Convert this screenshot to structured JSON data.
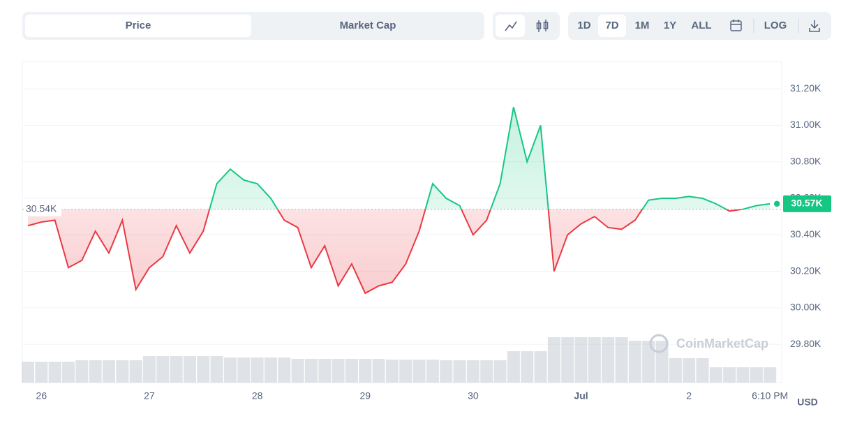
{
  "ui": {
    "tabs": [
      "Price",
      "Market Cap"
    ],
    "ranges": [
      "1D",
      "7D",
      "1M",
      "1Y",
      "ALL"
    ],
    "log": "LOG",
    "currency": "USD",
    "watermark": "CoinMarketCap"
  },
  "chart_data": {
    "type": "line",
    "categories": [
      null,
      "26",
      null,
      null,
      null,
      null,
      null,
      null,
      null,
      "27",
      null,
      null,
      null,
      null,
      null,
      null,
      null,
      "28",
      null,
      null,
      null,
      null,
      null,
      null,
      null,
      "29",
      null,
      null,
      null,
      null,
      null,
      null,
      null,
      "30",
      null,
      null,
      null,
      null,
      null,
      null,
      null,
      "Jul",
      null,
      null,
      null,
      null,
      null,
      null,
      null,
      "2",
      null,
      null,
      null,
      null,
      null,
      "6:10 PM"
    ],
    "values": [
      30450,
      30470,
      30480,
      30220,
      30260,
      30420,
      30300,
      30480,
      30100,
      30220,
      30280,
      30450,
      30300,
      30420,
      30680,
      30760,
      30700,
      30680,
      30600,
      30480,
      30440,
      30220,
      30340,
      30120,
      30240,
      30080,
      30120,
      30140,
      30240,
      30420,
      30680,
      30600,
      30560,
      30400,
      30480,
      30680,
      31100,
      30800,
      31000,
      30200,
      30400,
      30460,
      30500,
      30440,
      30430,
      30480,
      30590,
      30600,
      30600,
      30610,
      30600,
      30570,
      30530,
      30540,
      30560,
      30570
    ],
    "volume": [
      30,
      30,
      30,
      30,
      32,
      32,
      32,
      32,
      32,
      38,
      38,
      38,
      38,
      38,
      38,
      36,
      36,
      36,
      36,
      36,
      34,
      34,
      34,
      34,
      34,
      34,
      34,
      33,
      33,
      33,
      33,
      32,
      32,
      32,
      32,
      32,
      45,
      45,
      45,
      65,
      65,
      65,
      65,
      65,
      65,
      60,
      60,
      60,
      35,
      35,
      35,
      22,
      22,
      22,
      22,
      22
    ],
    "baseline": {
      "value": 30540,
      "label": "30.54K"
    },
    "last": {
      "value": 30570,
      "label": "30.57K"
    },
    "up_color": "#16c784",
    "down_color": "#ea3943",
    "volume_color": "#c9ced6",
    "ylim": [
      29590,
      31350
    ],
    "yticks": [
      {
        "value": 29800,
        "label": "29.80K"
      },
      {
        "value": 30000,
        "label": "30.00K"
      },
      {
        "value": 30200,
        "label": "30.20K"
      },
      {
        "value": 30400,
        "label": "30.40K"
      },
      {
        "value": 30600,
        "label": "30.60K"
      },
      {
        "value": 30800,
        "label": "30.80K"
      },
      {
        "value": 31000,
        "label": "31.00K"
      },
      {
        "value": 31200,
        "label": "31.20K"
      }
    ],
    "grid": true
  }
}
